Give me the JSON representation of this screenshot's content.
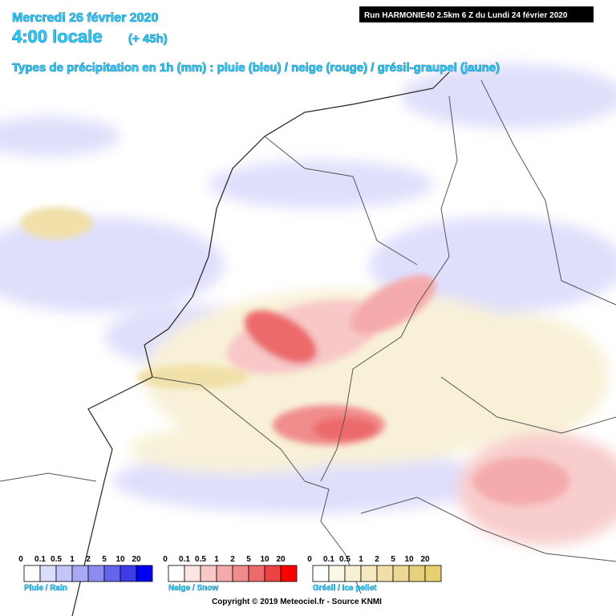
{
  "header": {
    "date": "Mercredi 26 février 2020",
    "time": "4:00 locale",
    "lead": "(+ 45h)",
    "run": "Run HARMONIE40 2.5km 6 Z du Lundi 24 février 2020",
    "subtitle": "Types de précipitation en 1h (mm) : pluie (bleu) / neige (rouge) / grésil-graupel (jaune)"
  },
  "legends": [
    {
      "label": "Pluie / Rain",
      "ticks": [
        "0",
        "0.1",
        "0.5",
        "1",
        "2",
        "5",
        "10",
        "20"
      ],
      "colors": [
        "#ffffff",
        "#dcdcfc",
        "#c4c4f8",
        "#a8a8f4",
        "#8c8cf0",
        "#6464ec",
        "#3c3ce8",
        "#0000f0"
      ]
    },
    {
      "label": "Neige / Snow",
      "ticks": [
        "0",
        "0.1",
        "0.5",
        "1",
        "2",
        "5",
        "10",
        "20"
      ],
      "colors": [
        "#ffffff",
        "#fce4e4",
        "#f8c8c8",
        "#f4aaaa",
        "#f08c8c",
        "#ec6a6a",
        "#ec4444",
        "#ff0000"
      ]
    },
    {
      "label": "Grésil / Ice pellet",
      "ticks": [
        "0",
        "0.1",
        "0.5",
        "1",
        "2",
        "5",
        "10",
        "20"
      ],
      "colors": [
        "#ffffff",
        "#fcf8e8",
        "#f8f0d4",
        "#f4e8c0",
        "#f0e0a8",
        "#ecd894",
        "#e8d07c",
        "#e8d070"
      ]
    }
  ],
  "copyright": "Copyright © 2019 Meteociel.fr - Source KNMI"
}
